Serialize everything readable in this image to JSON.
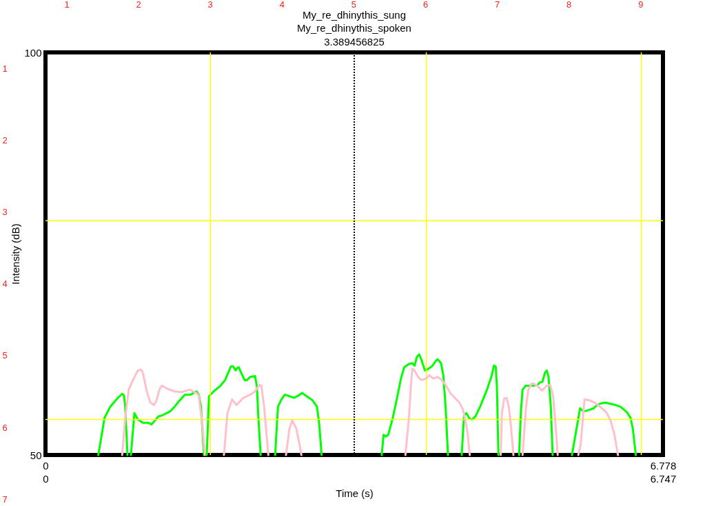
{
  "chart_data": {
    "type": "line",
    "title": "My_re_dhinythis_sung",
    "subtitle": "My_re_dhinythis_spoken",
    "xlabel": "Time (s)",
    "ylabel": "Intensity (dB)",
    "xlim": [
      0,
      6.778
    ],
    "xticks": [
      0,
      6.778
    ],
    "x2lim": [
      0,
      6.747
    ],
    "x2ticks": [
      0,
      6.747
    ],
    "ylim": [
      50,
      100
    ],
    "yticks": [
      50,
      100
    ],
    "grid": false,
    "legend": false,
    "series": [
      {
        "color": "#ffc0cb",
        "axis": "x2",
        "x": [
          0.838,
          0.871,
          0.909,
          0.947,
          1.009,
          1.046,
          1.064,
          1.109,
          1.147,
          1.185,
          1.21,
          1.247,
          1.272,
          1.335,
          1.411,
          1.485,
          1.574,
          1.612,
          1.649,
          1.674,
          1.712,
          1.742,
          1.842,
          1.95,
          1.988,
          2.039,
          2.088,
          2.163,
          2.239,
          2.289,
          2.339,
          2.359,
          2.389,
          2.435,
          2.538,
          2.628,
          2.666,
          2.696,
          2.74,
          2.778,
          2.796,
          3.384,
          3.933,
          3.971,
          3.996,
          4.009,
          4.033,
          4.071,
          4.108,
          4.159,
          4.197,
          4.235,
          4.284,
          4.322,
          4.372,
          4.423,
          4.472,
          4.523,
          4.56,
          4.586,
          4.611,
          4.636,
          4.778,
          4.974,
          4.987,
          5.012,
          5.037,
          5.063,
          5.088,
          5.113,
          5.156,
          5.213,
          5.251,
          5.276,
          5.314,
          5.363,
          5.426,
          5.477,
          5.514,
          5.547,
          5.576,
          5.597,
          5.674,
          5.822,
          5.847,
          5.89,
          5.941,
          6.003,
          6.079,
          6.13,
          6.18,
          6.217,
          6.255
        ],
        "values": [
          50,
          54.6,
          58.1,
          59.1,
          60.5,
          60.6,
          60.2,
          57.8,
          56.5,
          56.2,
          56.7,
          58.2,
          58.6,
          58.2,
          57.9,
          57.8,
          58.1,
          57.9,
          57.7,
          57.4,
          54.0,
          50,
          null,
          50,
          55.2,
          56.9,
          56.2,
          57.1,
          57.5,
          57.9,
          58.7,
          58.6,
          56.0,
          50,
          null,
          50,
          53.3,
          54.3,
          53.3,
          51.2,
          50,
          null,
          50,
          54.6,
          59.1,
          60.7,
          60.5,
          59.7,
          59.3,
          59.5,
          59.9,
          59.5,
          59.7,
          59.4,
          58.7,
          57.7,
          57.1,
          56.5,
          55.7,
          54.4,
          52.8,
          50,
          null,
          50,
          55.2,
          57.0,
          57.1,
          56.0,
          53.3,
          50,
          null,
          50,
          56.0,
          58.1,
          58.9,
          58.7,
          58.0,
          58.6,
          58.7,
          57.3,
          53.3,
          50,
          null,
          50,
          51.2,
          56.9,
          56.8,
          56.5,
          55.8,
          55.3,
          54.1,
          52.5,
          50
        ]
      },
      {
        "color": "#00ff00",
        "x": [
          0.58,
          0.648,
          0.711,
          0.787,
          0.842,
          0.862,
          0.875,
          0.9,
          0.92,
          0.938,
          0.976,
          1.014,
          1.069,
          1.127,
          1.165,
          1.24,
          1.278,
          1.367,
          1.417,
          1.467,
          1.53,
          1.594,
          1.657,
          1.682,
          1.707,
          1.74,
          1.755,
          1.77,
          1.795,
          1.846,
          1.921,
          1.972,
          2.035,
          2.06,
          2.086,
          2.103,
          2.123,
          2.148,
          2.186,
          2.211,
          2.249,
          2.3,
          2.32,
          2.337,
          2.362,
          2.44,
          2.521,
          2.552,
          2.59,
          2.627,
          2.678,
          2.728,
          2.779,
          2.817,
          2.867,
          2.93,
          2.98,
          3.005,
          3.031,
          3.4,
          3.691,
          3.711,
          3.737,
          3.762,
          3.812,
          3.863,
          3.9,
          3.938,
          3.989,
          4.027,
          4.052,
          4.077,
          4.102,
          4.127,
          4.165,
          4.203,
          4.241,
          4.279,
          4.304,
          4.342,
          4.367,
          4.392,
          4.418,
          4.5,
          4.569,
          4.594,
          4.619,
          4.657,
          4.682,
          4.72,
          4.771,
          4.846,
          4.897,
          4.922,
          4.942,
          4.955,
          4.972,
          5.1,
          5.199,
          5.219,
          5.237,
          5.27,
          5.35,
          5.401,
          5.426,
          5.456,
          5.482,
          5.502,
          5.522,
          5.547,
          5.567,
          5.7,
          5.779,
          5.83,
          5.868,
          5.906,
          5.968,
          6.019,
          6.044,
          6.095,
          6.145,
          6.183,
          6.259,
          6.31,
          6.384,
          6.422,
          6.447,
          6.48
        ],
        "values": [
          50,
          54.6,
          56.0,
          57.0,
          57.6,
          57.4,
          56.0,
          50,
          null,
          50,
          55.2,
          54.4,
          54.0,
          54.0,
          53.8,
          54.8,
          54.9,
          55.4,
          56.0,
          56.7,
          57.5,
          57.5,
          57.9,
          57.5,
          56.0,
          50,
          null,
          50,
          57.3,
          57.9,
          58.6,
          59.3,
          61.0,
          61.0,
          60.5,
          60.8,
          60.9,
          60.2,
          59.3,
          59.3,
          59.7,
          59.8,
          58.6,
          54.6,
          50,
          null,
          50,
          56.0,
          56.9,
          57.5,
          57.3,
          57.1,
          57.4,
          57.7,
          57.3,
          56.8,
          56.0,
          53.8,
          50,
          null,
          50,
          52.5,
          52.3,
          52.5,
          54.6,
          57.3,
          59.4,
          60.9,
          61.3,
          61.4,
          61.1,
          62.2,
          62.5,
          61.8,
          60.5,
          60.7,
          61.0,
          61.6,
          61.9,
          61.4,
          59.9,
          56.0,
          50,
          null,
          50,
          54.9,
          55.2,
          54.5,
          54.4,
          54.8,
          56.0,
          58.1,
          59.8,
          61.1,
          61.0,
          58.6,
          50,
          null,
          50,
          55.4,
          58.1,
          58.6,
          58.6,
          58.7,
          59.0,
          59.1,
          60.2,
          60.5,
          59.7,
          56.0,
          50,
          null,
          50,
          53.3,
          55.8,
          55.4,
          55.6,
          55.8,
          56.1,
          56.4,
          56.5,
          56.4,
          56.2,
          56.0,
          55.3,
          54.6,
          53.3,
          50
        ]
      }
    ],
    "ref_lines": [
      {
        "axis": "x",
        "value": 1.81,
        "color": "#ffff00"
      },
      {
        "axis": "x",
        "value": 4.18,
        "color": "#ffff00"
      },
      {
        "axis": "x",
        "value": 6.54,
        "color": "#ffff00"
      },
      {
        "axis": "y",
        "value": 79.1,
        "color": "#ffff00"
      },
      {
        "axis": "y",
        "value": 54.4,
        "color": "#ffff00"
      },
      {
        "axis": "x",
        "value": 3.389456825,
        "label": "3.389456825",
        "color": "#000000",
        "line_style": "dotted"
      }
    ],
    "annotations": [
      "1",
      "2",
      "3",
      "4",
      "5",
      "6",
      "7",
      "8",
      "9",
      "1",
      "2",
      "3",
      "4",
      "5",
      "6",
      "7"
    ]
  }
}
